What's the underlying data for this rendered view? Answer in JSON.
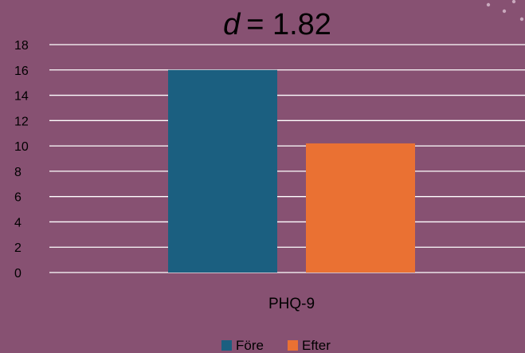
{
  "chart_data": {
    "type": "bar",
    "title_prefix": "d",
    "title_suffix": "= 1.82",
    "categories": [
      "PHQ-9"
    ],
    "series": [
      {
        "name": "Före",
        "values": [
          16
        ],
        "color": "#1b5f80"
      },
      {
        "name": "Efter",
        "values": [
          10.2
        ],
        "color": "#ea7133"
      }
    ],
    "ylim": [
      0,
      18
    ],
    "yticks": [
      0,
      2,
      4,
      6,
      8,
      10,
      12,
      14,
      16,
      18
    ],
    "grid": true,
    "legend_position": "bottom"
  },
  "colors": {
    "background": "#875172",
    "gridline": "#ffffff",
    "decoration_dots": "#c9a9bd"
  }
}
